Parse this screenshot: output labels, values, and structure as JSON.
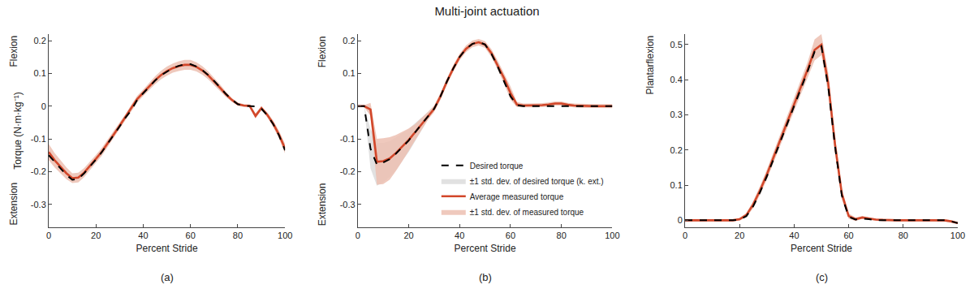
{
  "title": "Multi-joint actuation",
  "chart_data": [
    {
      "type": "line",
      "label": "(a)",
      "xlabel": "Percent Stride",
      "ylabel": "Torque (N·m·kg⁻¹)",
      "ylabel_top": "Flexion",
      "ylabel_bottom": "Extension",
      "x": [
        0,
        2.5,
        5,
        7.5,
        10,
        12.5,
        15,
        17.5,
        20,
        22.5,
        25,
        27.5,
        30,
        32.5,
        35,
        37.5,
        40,
        42.5,
        45,
        47.5,
        50,
        52.5,
        55,
        57.5,
        60,
        62.5,
        65,
        67.5,
        70,
        72.5,
        75,
        77.5,
        80,
        82.5,
        85,
        87.5,
        90,
        92.5,
        95,
        97.5,
        100
      ],
      "xlim": [
        0,
        100
      ],
      "xticks": [
        0,
        20,
        40,
        60,
        80,
        100
      ],
      "ylim": [
        -0.37,
        0.22
      ],
      "yticks": [
        -0.3,
        -0.2,
        -0.1,
        0,
        0.1,
        0.2
      ],
      "grid": false,
      "series": [
        {
          "color": "#000000",
          "line_style": "dashed",
          "values": [
            -0.15,
            -0.17,
            -0.19,
            -0.21,
            -0.225,
            -0.222,
            -0.205,
            -0.185,
            -0.163,
            -0.14,
            -0.115,
            -0.088,
            -0.062,
            -0.035,
            -0.012,
            0.02,
            0.04,
            0.06,
            0.078,
            0.094,
            0.106,
            0.116,
            0.123,
            0.128,
            0.128,
            0.121,
            0.11,
            0.095,
            0.077,
            0.057,
            0.037,
            0.02,
            0.006,
            0.001,
            0.0,
            -0.001,
            -0.008,
            -0.028,
            -0.055,
            -0.09,
            -0.135
          ]
        },
        {
          "color": "#d2472a",
          "line_style": "solid",
          "std_color": "#ecbfb1",
          "values": [
            -0.14,
            -0.165,
            -0.185,
            -0.205,
            -0.22,
            -0.218,
            -0.203,
            -0.183,
            -0.161,
            -0.139,
            -0.114,
            -0.087,
            -0.06,
            -0.034,
            -0.005,
            0.022,
            0.041,
            0.061,
            0.079,
            0.095,
            0.107,
            0.116,
            0.122,
            0.126,
            0.126,
            0.12,
            0.109,
            0.094,
            0.076,
            0.056,
            0.036,
            0.019,
            0.006,
            0.002,
            0.001,
            -0.03,
            -0.006,
            -0.027,
            -0.054,
            -0.088,
            -0.13
          ],
          "std": [
            0.025,
            0.022,
            0.02,
            0.018,
            0.015,
            0.015,
            0.014,
            0.013,
            0.012,
            0.012,
            0.012,
            0.011,
            0.01,
            0.01,
            0.01,
            0.01,
            0.01,
            0.011,
            0.012,
            0.013,
            0.014,
            0.014,
            0.015,
            0.015,
            0.015,
            0.014,
            0.013,
            0.012,
            0.011,
            0.01,
            0.008,
            0.006,
            0.005,
            0.004,
            0.004,
            0.008,
            0.005,
            0.008,
            0.01,
            0.012,
            0.015
          ]
        }
      ]
    },
    {
      "type": "line",
      "label": "(b)",
      "xlabel": "Percent Stride",
      "ylabel_top": "Flexion",
      "ylabel_bottom": "Extension",
      "x": [
        0,
        2.5,
        5,
        7.5,
        10,
        12.5,
        15,
        17.5,
        20,
        22.5,
        25,
        27.5,
        30,
        32.5,
        35,
        37.5,
        40,
        42.5,
        45,
        47.5,
        50,
        52.5,
        55,
        57.5,
        60,
        62.5,
        65,
        67.5,
        70,
        72.5,
        75,
        77.5,
        80,
        82.5,
        85,
        87.5,
        90,
        92.5,
        95,
        97.5,
        100
      ],
      "xlim": [
        0,
        100
      ],
      "xticks": [
        0,
        20,
        40,
        60,
        80,
        100
      ],
      "ylim": [
        -0.37,
        0.22
      ],
      "yticks": [
        -0.3,
        -0.2,
        -0.1,
        0,
        0.1,
        0.2
      ],
      "grid": false,
      "legend": "lower right",
      "series": [
        {
          "name": "Desired torque",
          "color": "#000000",
          "line_style": "dashed",
          "std_name": "±1 std. dev. of desired torque (k. ext.)",
          "std_color": "#dcdcdc",
          "values": [
            0,
            0,
            -0.13,
            -0.178,
            -0.172,
            -0.162,
            -0.145,
            -0.125,
            -0.105,
            -0.08,
            -0.055,
            -0.03,
            -0.008,
            0.03,
            0.075,
            0.115,
            0.15,
            0.175,
            0.19,
            0.196,
            0.188,
            0.16,
            0.12,
            0.075,
            0.03,
            0.003,
            0,
            0,
            0,
            0,
            0,
            0,
            0,
            0,
            0,
            0,
            0,
            0,
            0,
            0,
            0
          ],
          "std": [
            0,
            0,
            0.06,
            0.065,
            0.06,
            0.055,
            0.05,
            0.042,
            0.035,
            0.028,
            0.02,
            0.012,
            0.006,
            0.005,
            0.005,
            0.005,
            0.005,
            0.005,
            0.005,
            0.005,
            0.005,
            0.005,
            0.006,
            0.006,
            0.005,
            0.003,
            0,
            0,
            0,
            0,
            0,
            0,
            0,
            0,
            0,
            0,
            0,
            0,
            0,
            0,
            0
          ]
        },
        {
          "name": "Average measured torque",
          "color": "#d2472a",
          "line_style": "solid",
          "std_name": "±1 std. dev. of measured torque",
          "std_color": "#ecbfb1",
          "values": [
            0,
            0,
            -0.01,
            -0.17,
            -0.168,
            -0.16,
            -0.143,
            -0.123,
            -0.103,
            -0.08,
            -0.055,
            -0.03,
            -0.008,
            0.03,
            0.075,
            0.115,
            0.15,
            0.175,
            0.19,
            0.195,
            0.188,
            0.162,
            0.125,
            0.085,
            0.04,
            0.005,
            0.002,
            0.002,
            0.002,
            0.003,
            0.005,
            0.008,
            0.008,
            0.004,
            0.002,
            0.001,
            0,
            0,
            0,
            0,
            0
          ],
          "std": [
            0,
            0.003,
            0.02,
            0.07,
            0.07,
            0.065,
            0.055,
            0.045,
            0.035,
            0.025,
            0.018,
            0.012,
            0.01,
            0.01,
            0.01,
            0.01,
            0.01,
            0.01,
            0.01,
            0.01,
            0.01,
            0.012,
            0.014,
            0.016,
            0.02,
            0.008,
            0.006,
            0.006,
            0.006,
            0.006,
            0.006,
            0.006,
            0.006,
            0.006,
            0.006,
            0.006,
            0.006,
            0.006,
            0.006,
            0.006,
            0.006
          ]
        }
      ]
    },
    {
      "type": "line",
      "label": "(c)",
      "xlabel": "Percent Stride",
      "ylabel_top": "Plantarflexion",
      "x": [
        0,
        2.5,
        5,
        7.5,
        10,
        12.5,
        15,
        17.5,
        20,
        22.5,
        25,
        27.5,
        30,
        32.5,
        35,
        37.5,
        40,
        42.5,
        45,
        47.5,
        50,
        52.5,
        55,
        57.5,
        60,
        62.5,
        65,
        67.5,
        70,
        72.5,
        75,
        77.5,
        80,
        82.5,
        85,
        87.5,
        90,
        92.5,
        95,
        97.5,
        100
      ],
      "xlim": [
        0,
        100
      ],
      "xticks": [
        0,
        20,
        40,
        60,
        80,
        100
      ],
      "ylim": [
        -0.02,
        0.53
      ],
      "yticks": [
        0,
        0.1,
        0.2,
        0.3,
        0.4,
        0.5
      ],
      "grid": false,
      "series": [
        {
          "color": "#000000",
          "line_style": "dashed",
          "values": [
            0,
            0,
            0,
            0,
            0,
            0,
            0,
            0,
            0.002,
            0.012,
            0.04,
            0.08,
            0.125,
            0.175,
            0.225,
            0.275,
            0.325,
            0.375,
            0.425,
            0.48,
            0.495,
            0.38,
            0.21,
            0.07,
            0.01,
            0.002,
            0.005,
            0.003,
            0,
            0,
            0,
            0,
            0,
            0,
            0,
            0,
            0,
            0,
            0,
            -0.003,
            -0.008
          ]
        },
        {
          "color": "#d2472a",
          "line_style": "solid",
          "std_color": "#ecbfb1",
          "values": [
            0,
            0,
            0,
            0,
            0,
            0,
            0,
            0,
            0.003,
            0.015,
            0.045,
            0.085,
            0.13,
            0.18,
            0.23,
            0.28,
            0.33,
            0.38,
            0.43,
            0.485,
            0.5,
            0.39,
            0.215,
            0.075,
            0.012,
            0.003,
            0.008,
            0.005,
            0.002,
            0.001,
            0,
            0,
            0,
            0,
            0,
            0,
            0,
            0,
            0,
            -0.003,
            -0.008
          ],
          "std": [
            0.003,
            0.003,
            0.003,
            0.003,
            0.003,
            0.003,
            0.003,
            0.003,
            0.004,
            0.006,
            0.01,
            0.012,
            0.014,
            0.015,
            0.016,
            0.017,
            0.018,
            0.02,
            0.022,
            0.03,
            0.03,
            0.03,
            0.025,
            0.015,
            0.008,
            0.005,
            0.004,
            0.004,
            0.003,
            0.003,
            0.003,
            0.003,
            0.003,
            0.003,
            0.003,
            0.003,
            0.003,
            0.003,
            0.003,
            0.003,
            0.003
          ]
        }
      ]
    }
  ]
}
